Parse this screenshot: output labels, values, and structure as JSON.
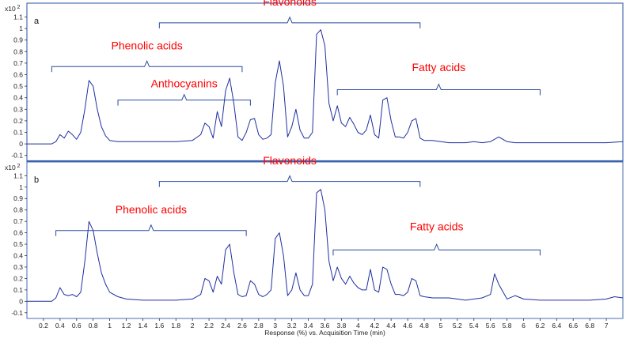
{
  "chart_data": {
    "type": "line",
    "xlabel": "Response (%) vs. Acquisition Time (min)",
    "xlim": [
      0,
      7.2
    ],
    "x_ticks": [
      "0.2",
      "0.4",
      "0.6",
      "0.8",
      "1",
      "1.2",
      "1.4",
      "1.6",
      "1.8",
      "2",
      "2.2",
      "2.4",
      "2.6",
      "2.8",
      "3",
      "3.2",
      "3.4",
      "3.6",
      "3.8",
      "4",
      "4.2",
      "4.4",
      "4.6",
      "4.8",
      "5",
      "5.2",
      "5.4",
      "5.6",
      "5.8",
      "6",
      "6.2",
      "6.4",
      "6.6",
      "6.8",
      "7"
    ],
    "y_ticks": [
      "-0.1",
      "0",
      "0.1",
      "0.2",
      "0.3",
      "0.4",
      "0.5",
      "0.6",
      "0.7",
      "0.8",
      "0.9",
      "1",
      "1.1"
    ],
    "line_color": "#1f2fa0",
    "label_color": "#ff0000",
    "panels": [
      {
        "id": "a",
        "label": "a",
        "multiplier": "x10",
        "multiplier_exp": "2",
        "ylim": [
          -0.15,
          1.22
        ],
        "series": [
          {
            "x": [
              0,
              0.3,
              0.35,
              0.4,
              0.45,
              0.5,
              0.55,
              0.6,
              0.65,
              0.7,
              0.75,
              0.8,
              0.85,
              0.9,
              0.95,
              1.0,
              1.1,
              1.2,
              1.4,
              1.6,
              1.8,
              2.0,
              2.1,
              2.15,
              2.2,
              2.25,
              2.3,
              2.35,
              2.4,
              2.45,
              2.5,
              2.55,
              2.6,
              2.65,
              2.7,
              2.75,
              2.8,
              2.85,
              2.9,
              2.95,
              3.0,
              3.05,
              3.1,
              3.15,
              3.2,
              3.25,
              3.3,
              3.35,
              3.4,
              3.45,
              3.5,
              3.55,
              3.6,
              3.65,
              3.7,
              3.75,
              3.8,
              3.85,
              3.9,
              3.95,
              4.0,
              4.05,
              4.1,
              4.15,
              4.2,
              4.25,
              4.3,
              4.35,
              4.4,
              4.45,
              4.5,
              4.55,
              4.6,
              4.65,
              4.7,
              4.75,
              4.8,
              4.9,
              5.0,
              5.1,
              5.2,
              5.3,
              5.4,
              5.5,
              5.6,
              5.7,
              5.8,
              5.9,
              6.0,
              6.2,
              6.4,
              6.6,
              6.8,
              7.0,
              7.2
            ],
            "y": [
              0,
              0,
              0.02,
              0.08,
              0.05,
              0.11,
              0.08,
              0.04,
              0.1,
              0.3,
              0.55,
              0.5,
              0.3,
              0.15,
              0.07,
              0.03,
              0.02,
              0.02,
              0.02,
              0.02,
              0.02,
              0.03,
              0.08,
              0.18,
              0.15,
              0.05,
              0.28,
              0.15,
              0.46,
              0.57,
              0.35,
              0.06,
              0.03,
              0.1,
              0.21,
              0.22,
              0.08,
              0.04,
              0.05,
              0.08,
              0.53,
              0.72,
              0.5,
              0.06,
              0.15,
              0.3,
              0.12,
              0.05,
              0.05,
              0.1,
              0.95,
              0.99,
              0.85,
              0.35,
              0.2,
              0.33,
              0.18,
              0.15,
              0.23,
              0.17,
              0.1,
              0.08,
              0.12,
              0.25,
              0.08,
              0.05,
              0.38,
              0.4,
              0.2,
              0.06,
              0.06,
              0.05,
              0.1,
              0.2,
              0.22,
              0.05,
              0.03,
              0.03,
              0.02,
              0.01,
              0.01,
              0.01,
              0.02,
              0.01,
              0.02,
              0.06,
              0.02,
              0.01,
              0.01,
              0.01,
              0.01,
              0.01,
              0.01,
              0.01,
              0.02
            ]
          }
        ],
        "groups": [
          {
            "label": "Flavonoids",
            "x0": 1.6,
            "x1": 4.75,
            "y": 1.05,
            "label_y": 1.2
          },
          {
            "label": "Phenolic acids",
            "x0": 0.3,
            "x1": 2.6,
            "y": 0.67,
            "label_y": 0.82
          },
          {
            "label": "Anthocyanins",
            "x0": 1.1,
            "x1": 2.7,
            "y": 0.38,
            "label_y": 0.49
          },
          {
            "label": "Fatty acids",
            "x0": 3.75,
            "x1": 6.2,
            "y": 0.47,
            "label_y": 0.63
          }
        ]
      },
      {
        "id": "b",
        "label": "b",
        "multiplier": "x10",
        "multiplier_exp": "2",
        "ylim": [
          -0.15,
          1.22
        ],
        "series": [
          {
            "x": [
              0,
              0.3,
              0.35,
              0.4,
              0.45,
              0.5,
              0.55,
              0.6,
              0.65,
              0.7,
              0.75,
              0.8,
              0.85,
              0.9,
              0.95,
              1.0,
              1.1,
              1.2,
              1.4,
              1.6,
              1.8,
              2.0,
              2.1,
              2.15,
              2.2,
              2.25,
              2.3,
              2.35,
              2.4,
              2.45,
              2.5,
              2.55,
              2.6,
              2.65,
              2.7,
              2.75,
              2.8,
              2.85,
              2.9,
              2.95,
              3.0,
              3.05,
              3.1,
              3.15,
              3.2,
              3.25,
              3.3,
              3.35,
              3.4,
              3.45,
              3.5,
              3.55,
              3.6,
              3.65,
              3.7,
              3.75,
              3.8,
              3.85,
              3.9,
              3.95,
              4.0,
              4.05,
              4.1,
              4.15,
              4.2,
              4.25,
              4.3,
              4.35,
              4.4,
              4.45,
              4.5,
              4.55,
              4.6,
              4.65,
              4.7,
              4.75,
              4.8,
              4.9,
              5.0,
              5.1,
              5.2,
              5.3,
              5.4,
              5.5,
              5.6,
              5.65,
              5.7,
              5.8,
              5.9,
              6.0,
              6.2,
              6.4,
              6.6,
              6.8,
              7.0,
              7.1,
              7.2
            ],
            "y": [
              0,
              0,
              0.03,
              0.12,
              0.06,
              0.05,
              0.06,
              0.04,
              0.08,
              0.35,
              0.7,
              0.62,
              0.42,
              0.25,
              0.15,
              0.08,
              0.04,
              0.02,
              0.01,
              0.01,
              0.01,
              0.02,
              0.06,
              0.2,
              0.18,
              0.08,
              0.22,
              0.15,
              0.45,
              0.5,
              0.25,
              0.06,
              0.04,
              0.05,
              0.18,
              0.15,
              0.06,
              0.04,
              0.06,
              0.1,
              0.55,
              0.6,
              0.4,
              0.05,
              0.1,
              0.25,
              0.1,
              0.05,
              0.05,
              0.15,
              0.95,
              0.98,
              0.8,
              0.35,
              0.18,
              0.3,
              0.2,
              0.15,
              0.22,
              0.16,
              0.12,
              0.1,
              0.1,
              0.28,
              0.1,
              0.08,
              0.3,
              0.28,
              0.15,
              0.06,
              0.06,
              0.05,
              0.08,
              0.2,
              0.18,
              0.05,
              0.04,
              0.03,
              0.03,
              0.03,
              0.02,
              0.01,
              0.02,
              0.03,
              0.06,
              0.24,
              0.15,
              0.02,
              0.05,
              0.02,
              0.01,
              0.01,
              0.01,
              0.01,
              0.02,
              0.04,
              0.03
            ]
          }
        ],
        "groups": [
          {
            "label": "Flavonoids",
            "x0": 1.6,
            "x1": 4.75,
            "y": 1.05,
            "label_y": 1.2
          },
          {
            "label": "Phenolic acids",
            "x0": 0.35,
            "x1": 2.65,
            "y": 0.62,
            "label_y": 0.77
          },
          {
            "label": "Fatty acids",
            "x0": 3.7,
            "x1": 6.2,
            "y": 0.45,
            "label_y": 0.62
          }
        ]
      }
    ]
  }
}
